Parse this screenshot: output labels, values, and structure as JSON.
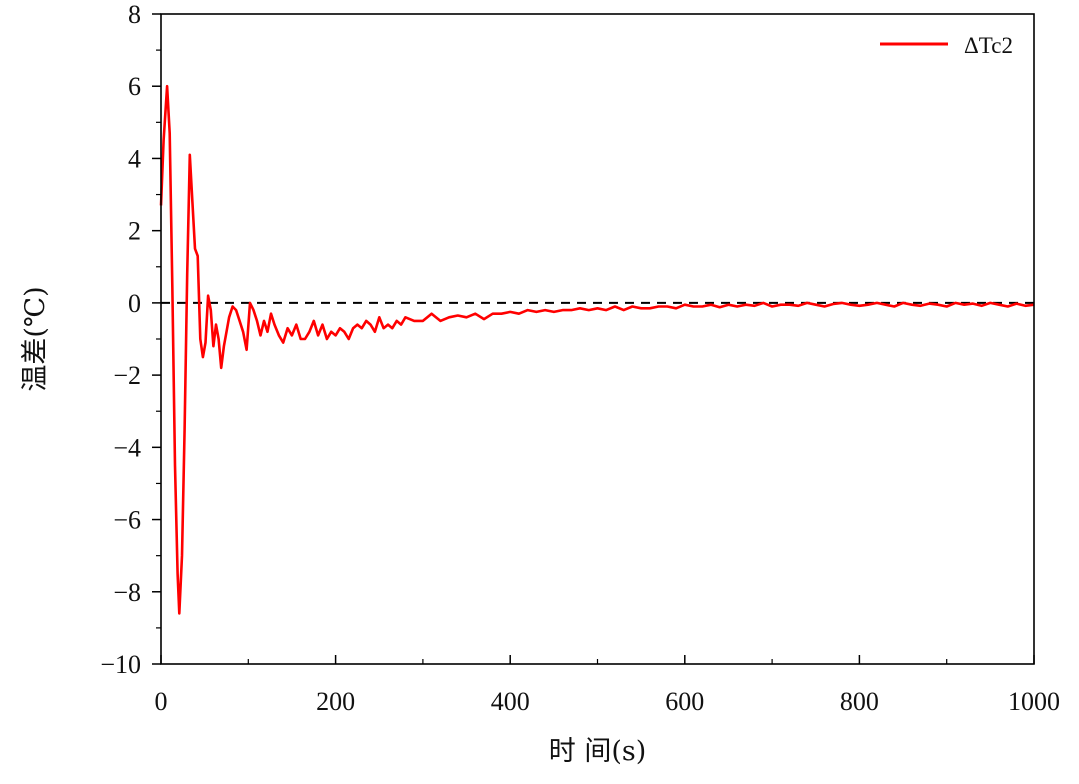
{
  "chart_data": {
    "type": "line",
    "xlabel": "时 间(s)",
    "ylabel": "温差(℃)",
    "xlim": [
      0,
      1000
    ],
    "ylim": [
      -10,
      8
    ],
    "xticks": [
      0,
      200,
      400,
      600,
      800,
      1000
    ],
    "xtick_labels": [
      "0",
      "200",
      "400",
      "600",
      "800",
      "1000"
    ],
    "yticks": [
      8,
      6,
      4,
      2,
      0,
      -2,
      -4,
      -6,
      -8,
      -10
    ],
    "ytick_labels": [
      "8",
      "6",
      "4",
      "2",
      "0",
      "−2",
      "−4",
      "−6",
      "−8",
      "−10"
    ],
    "grid": false,
    "legend_position": "top-right",
    "reference_line": {
      "y": 0,
      "style": "dashed",
      "color": "#000000"
    },
    "series": [
      {
        "name": "ΔTc2",
        "color": "#ff0000",
        "x": [
          0,
          3,
          7,
          10,
          13,
          16,
          19,
          21,
          24,
          27,
          30,
          33,
          36,
          39,
          42,
          45,
          48,
          51,
          54,
          57,
          60,
          63,
          66,
          69,
          72,
          75,
          78,
          82,
          86,
          90,
          94,
          98,
          102,
          106,
          110,
          114,
          118,
          122,
          126,
          130,
          135,
          140,
          145,
          150,
          155,
          160,
          165,
          170,
          175,
          180,
          185,
          190,
          195,
          200,
          205,
          210,
          215,
          220,
          225,
          230,
          235,
          240,
          245,
          250,
          255,
          260,
          265,
          270,
          275,
          280,
          290,
          300,
          310,
          320,
          330,
          340,
          350,
          360,
          370,
          380,
          390,
          400,
          410,
          420,
          430,
          440,
          450,
          460,
          470,
          480,
          490,
          500,
          510,
          520,
          530,
          540,
          550,
          560,
          570,
          580,
          590,
          600,
          610,
          620,
          630,
          640,
          650,
          660,
          670,
          680,
          690,
          700,
          710,
          720,
          730,
          740,
          750,
          760,
          770,
          780,
          790,
          800,
          810,
          820,
          830,
          840,
          850,
          860,
          870,
          880,
          890,
          900,
          910,
          920,
          930,
          940,
          950,
          960,
          970,
          980,
          990,
          1000
        ],
        "values": [
          2.7,
          4.5,
          6.0,
          4.7,
          0.5,
          -4.5,
          -7.5,
          -8.6,
          -7.0,
          -3.5,
          0.8,
          4.1,
          2.8,
          1.5,
          1.3,
          -1.0,
          -1.5,
          -1.1,
          0.2,
          -0.2,
          -1.2,
          -0.6,
          -1.0,
          -1.8,
          -1.2,
          -0.8,
          -0.4,
          -0.1,
          -0.2,
          -0.5,
          -0.8,
          -1.3,
          0.0,
          -0.2,
          -0.5,
          -0.9,
          -0.5,
          -0.8,
          -0.3,
          -0.6,
          -0.9,
          -1.1,
          -0.7,
          -0.9,
          -0.6,
          -1.0,
          -1.0,
          -0.8,
          -0.5,
          -0.9,
          -0.6,
          -1.0,
          -0.8,
          -0.9,
          -0.7,
          -0.8,
          -1.0,
          -0.7,
          -0.6,
          -0.7,
          -0.5,
          -0.6,
          -0.8,
          -0.4,
          -0.7,
          -0.6,
          -0.7,
          -0.5,
          -0.6,
          -0.4,
          -0.5,
          -0.5,
          -0.3,
          -0.5,
          -0.4,
          -0.35,
          -0.4,
          -0.3,
          -0.45,
          -0.3,
          -0.3,
          -0.25,
          -0.3,
          -0.2,
          -0.25,
          -0.2,
          -0.25,
          -0.2,
          -0.2,
          -0.15,
          -0.2,
          -0.15,
          -0.2,
          -0.1,
          -0.2,
          -0.1,
          -0.15,
          -0.15,
          -0.1,
          -0.1,
          -0.15,
          -0.05,
          -0.1,
          -0.1,
          -0.05,
          -0.12,
          -0.05,
          -0.1,
          -0.05,
          -0.08,
          0.0,
          -0.1,
          -0.05,
          -0.05,
          -0.08,
          0.0,
          -0.05,
          -0.1,
          -0.03,
          0.0,
          -0.05,
          -0.08,
          -0.05,
          0.0,
          -0.05,
          -0.1,
          0.0,
          -0.05,
          -0.08,
          -0.02,
          -0.05,
          -0.1,
          0.0,
          -0.05,
          -0.02,
          -0.08,
          0.0,
          -0.05,
          -0.1,
          -0.02,
          -0.08,
          -0.05
        ]
      }
    ]
  }
}
